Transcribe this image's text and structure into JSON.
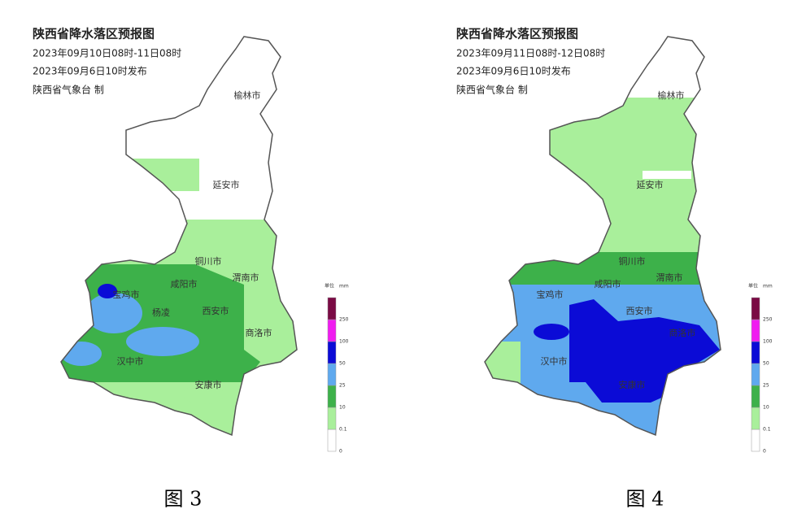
{
  "maps": [
    {
      "title": "陕西省降水落区预报图",
      "valid_time": "2023年09月10日08时-11日08时",
      "issued": "2023年09月6日10时发布",
      "agency": "陕西省气象台 制",
      "caption": "图 3",
      "cities": [
        "榆林市",
        "延安市",
        "铜川市",
        "渭南市",
        "宝鸡市",
        "咸阳市",
        "杨凌",
        "西安市",
        "商洛市",
        "汉中市",
        "安康市"
      ]
    },
    {
      "title": "陕西省降水落区预报图",
      "valid_time": "2023年09月11日08时-12日08时",
      "issued": "2023年09月6日10时发布",
      "agency": "陕西省气象台 制",
      "caption": "图 4",
      "cities": [
        "榆林市",
        "延安市",
        "铜川市",
        "渭南市",
        "宝鸡市",
        "咸阳市",
        "西安市",
        "商洛市",
        "汉中市",
        "安康市"
      ]
    }
  ],
  "legend": {
    "unit_label": "单位",
    "unit": "mm",
    "ticks": [
      0,
      0.1,
      10,
      25,
      50,
      100,
      250
    ],
    "colors": [
      "#ffffff",
      "#a9ef9b",
      "#3db14a",
      "#5fa9ee",
      "#0b0bd6",
      "#f01cf0",
      "#7a0a44"
    ]
  }
}
